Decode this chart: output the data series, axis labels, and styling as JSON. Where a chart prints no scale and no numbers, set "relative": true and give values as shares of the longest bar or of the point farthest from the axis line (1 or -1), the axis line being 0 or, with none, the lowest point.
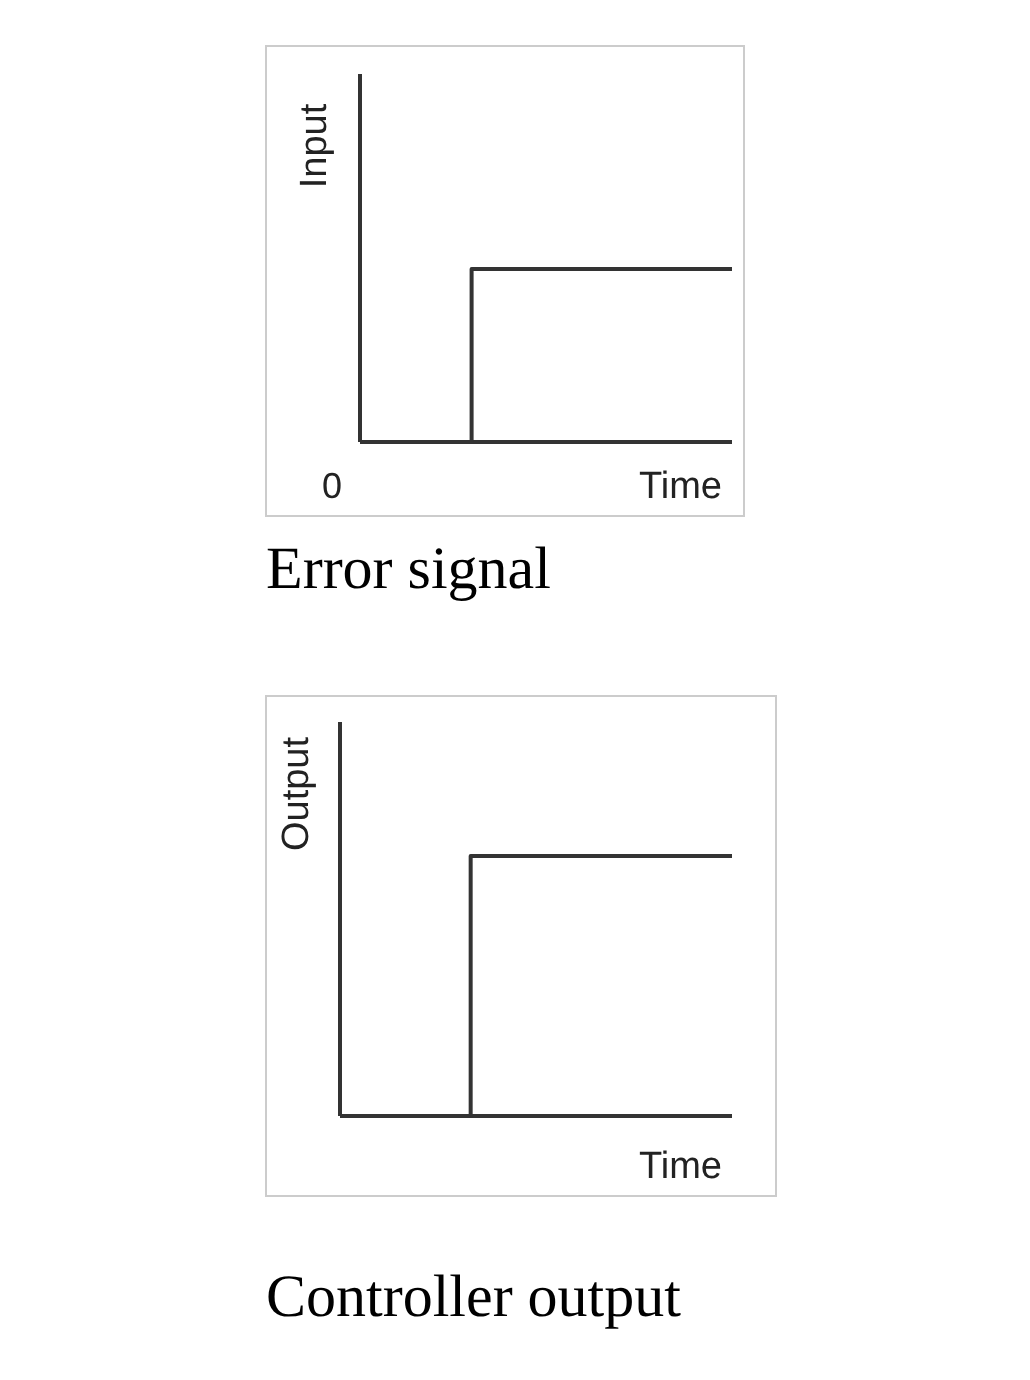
{
  "chart_data": [
    {
      "type": "step",
      "title": "Error signal",
      "xlabel": "Time",
      "ylabel": "Input",
      "relative": true,
      "annotations": [
        "0"
      ],
      "categories": [
        null,
        null,
        null,
        null,
        null,
        null,
        null,
        null,
        null,
        null,
        null
      ],
      "series": [
        {
          "color": "#333333",
          "values": [
            0,
            0,
            0,
            1,
            1,
            1,
            1,
            1,
            1,
            1,
            1
          ]
        }
      ]
    },
    {
      "type": "step",
      "title": "Controller output",
      "xlabel": "Time",
      "ylabel": "Output",
      "relative": true,
      "categories": [
        null,
        null,
        null,
        null
      ],
      "series": [
        {
          "color": "#333333",
          "values": [
            0,
            1,
            1,
            1
          ]
        }
      ]
    }
  ]
}
